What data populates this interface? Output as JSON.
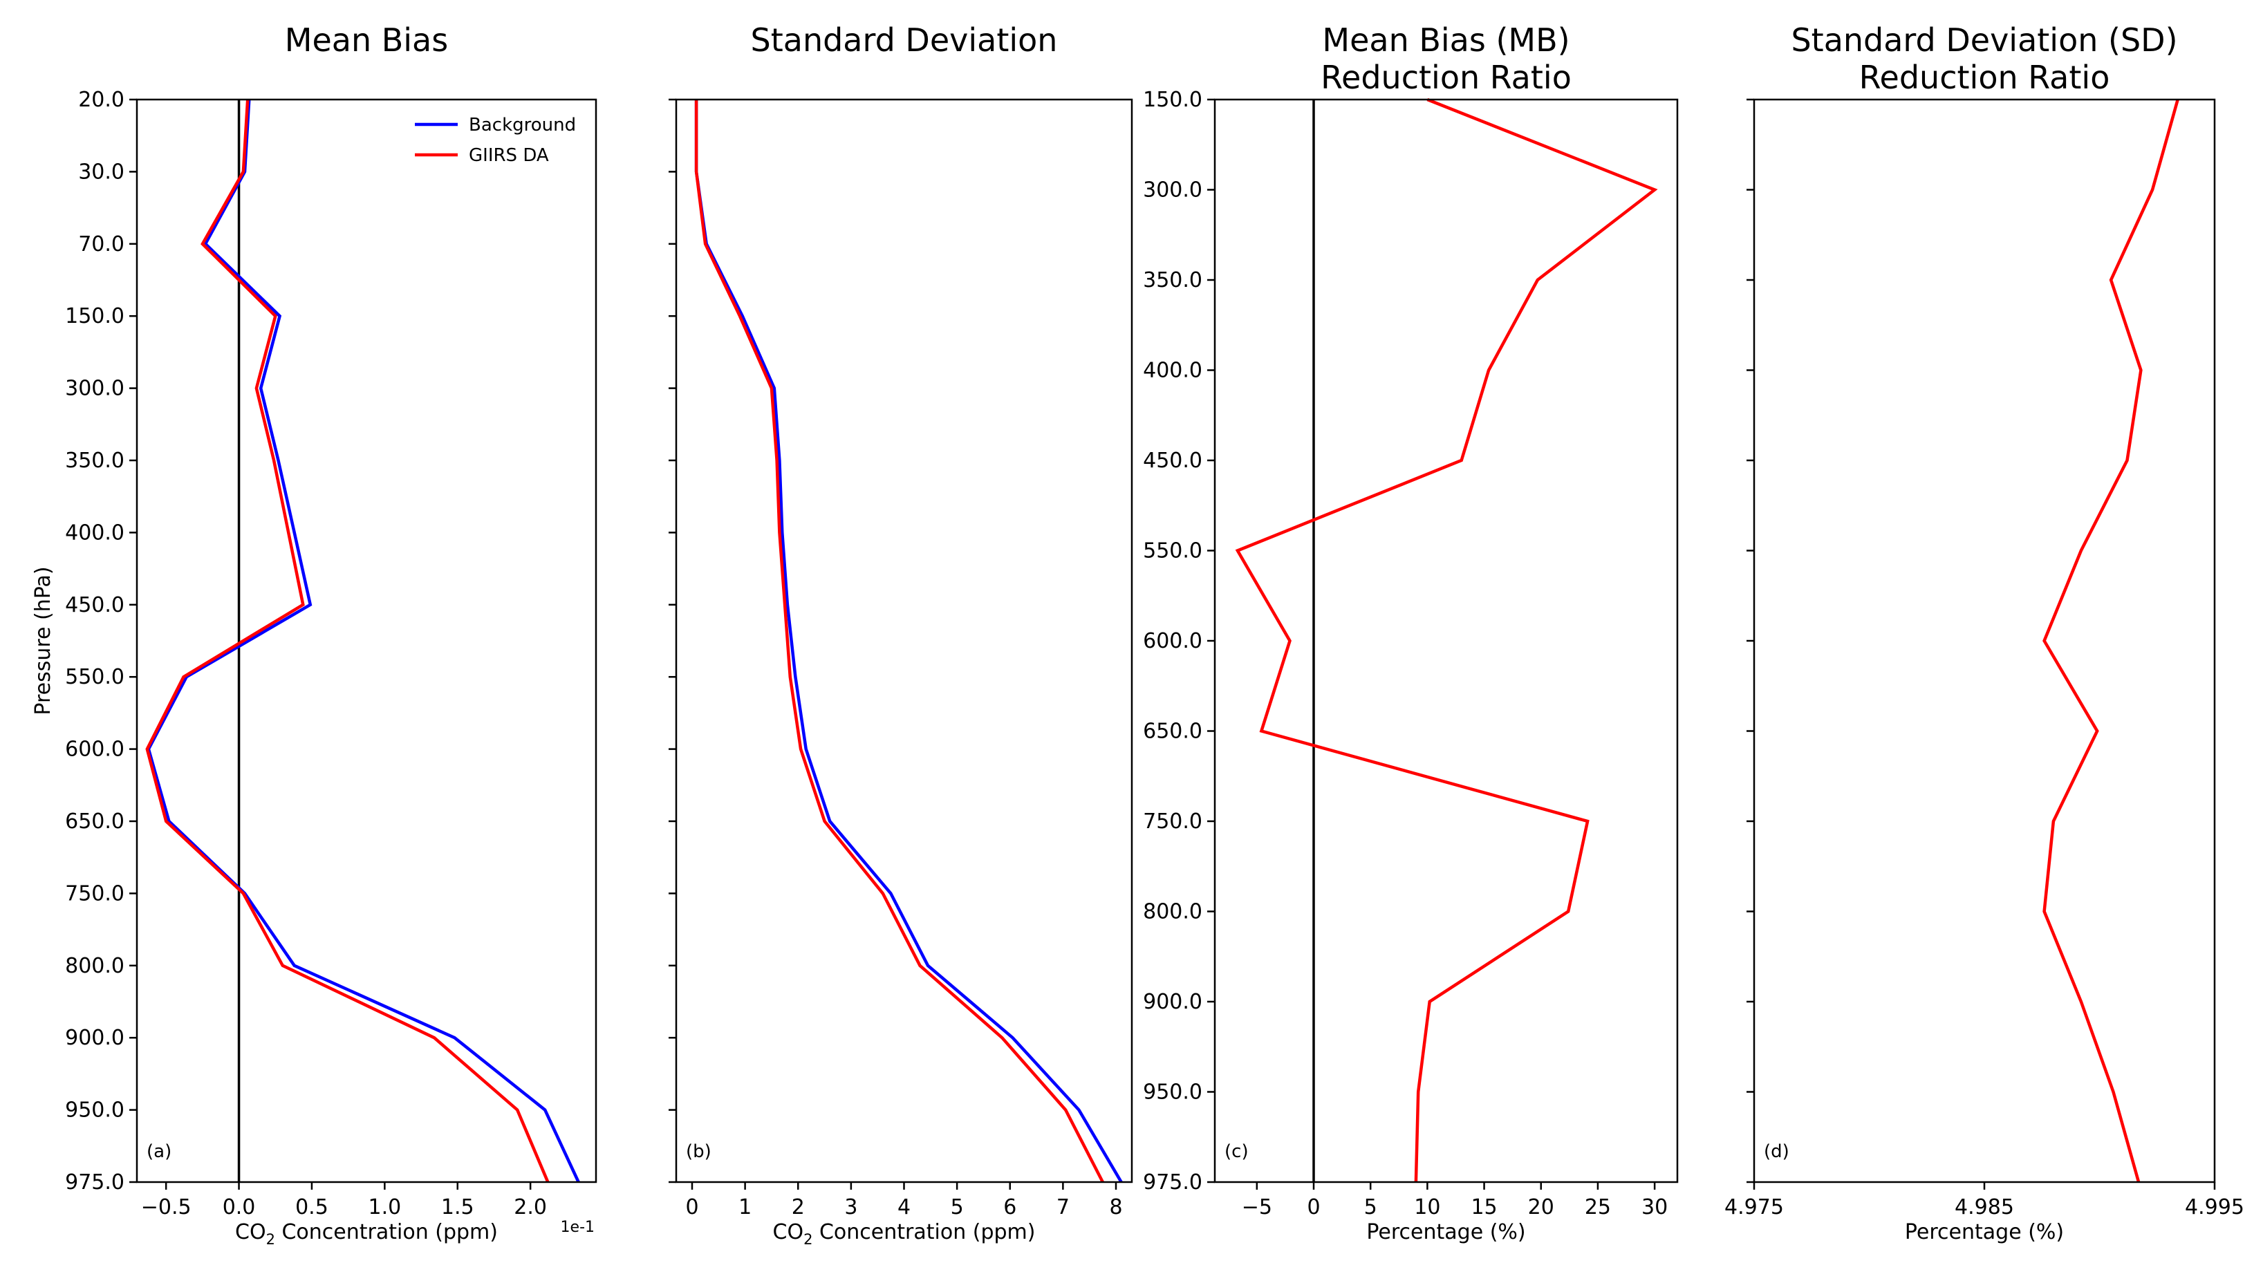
{
  "chart_data": [
    {
      "panel": "(a)",
      "type": "line",
      "title": "Mean Bias",
      "xlabel": "CO2 Concentration (ppm)",
      "xlabel_sub_main": "CO",
      "xlabel_sub": "2",
      "xlabel_rest": " Concentration (ppm)",
      "ylabel": "Pressure (hPa)",
      "x_offset_text": "1e-1",
      "xlim": [
        -0.7,
        2.45
      ],
      "xticks": [
        -0.5,
        0.0,
        0.5,
        1.0,
        1.5,
        2.0
      ],
      "xtick_labels": [
        "−0.5",
        "0.0",
        "0.5",
        "1.0",
        "1.5",
        "2.0"
      ],
      "levels": [
        "20.0",
        "30.0",
        "70.0",
        "150.0",
        "300.0",
        "350.0",
        "400.0",
        "450.0",
        "550.0",
        "600.0",
        "650.0",
        "750.0",
        "800.0",
        "900.0",
        "950.0",
        "975.0"
      ],
      "reference_line_x": 0,
      "legend": "top-right",
      "series": [
        {
          "name": "Background",
          "color": "#0000ff",
          "values": [
            0.07,
            0.04,
            -0.23,
            0.28,
            0.15,
            0.27,
            0.38,
            0.49,
            -0.36,
            -0.62,
            -0.48,
            0.04,
            0.38,
            1.48,
            2.1,
            2.33
          ]
        },
        {
          "name": "GIIRS DA",
          "color": "#ff0000",
          "values": [
            0.06,
            0.03,
            -0.25,
            0.25,
            0.12,
            0.24,
            0.34,
            0.44,
            -0.38,
            -0.63,
            -0.5,
            0.03,
            0.3,
            1.34,
            1.91,
            2.12
          ]
        }
      ]
    },
    {
      "panel": "(b)",
      "type": "line",
      "title": "Standard Deviation",
      "xlabel": "CO2 Concentration (ppm)",
      "xlabel_sub_main": "CO",
      "xlabel_sub": "2",
      "xlabel_rest": " Concentration (ppm)",
      "xlim": [
        -0.3,
        8.3
      ],
      "xticks": [
        0,
        1,
        2,
        3,
        4,
        5,
        6,
        7,
        8
      ],
      "xtick_labels": [
        "0",
        "1",
        "2",
        "3",
        "4",
        "5",
        "6",
        "7",
        "8"
      ],
      "levels": [
        "20.0",
        "30.0",
        "70.0",
        "150.0",
        "300.0",
        "350.0",
        "400.0",
        "450.0",
        "550.0",
        "600.0",
        "650.0",
        "750.0",
        "800.0",
        "900.0",
        "950.0",
        "975.0"
      ],
      "series": [
        {
          "name": "Background",
          "color": "#0000ff",
          "values": [
            0.08,
            0.08,
            0.27,
            0.95,
            1.55,
            1.65,
            1.7,
            1.8,
            1.95,
            2.15,
            2.6,
            3.75,
            4.45,
            6.05,
            7.3,
            8.1
          ]
        },
        {
          "name": "GIIRS DA",
          "color": "#ff0000",
          "values": [
            0.08,
            0.08,
            0.25,
            0.9,
            1.5,
            1.6,
            1.65,
            1.75,
            1.85,
            2.05,
            2.5,
            3.6,
            4.3,
            5.85,
            7.05,
            7.75
          ]
        }
      ]
    },
    {
      "panel": "(c)",
      "type": "line",
      "title": "Mean Bias (MB)",
      "title2": "Reduction Ratio",
      "xlabel": "Percentage (%)",
      "xlim": [
        -8.7,
        32.0
      ],
      "xticks": [
        -5,
        0,
        5,
        10,
        15,
        20,
        25,
        30
      ],
      "xtick_labels": [
        "−5",
        "0",
        "5",
        "10",
        "15",
        "20",
        "25",
        "30"
      ],
      "levels": [
        "150.0",
        "300.0",
        "350.0",
        "400.0",
        "450.0",
        "550.0",
        "600.0",
        "650.0",
        "750.0",
        "800.0",
        "900.0",
        "950.0",
        "975.0"
      ],
      "reference_line_x": 0,
      "series": [
        {
          "name": "MB Reduction Ratio",
          "color": "#ff0000",
          "values": [
            10.0,
            30.0,
            19.7,
            15.4,
            13.0,
            -6.7,
            -2.1,
            -4.6,
            24.1,
            22.4,
            10.2,
            9.2,
            9.0
          ]
        }
      ]
    },
    {
      "panel": "(d)",
      "type": "line",
      "title": "Standard Deviation (SD)",
      "title2": "Reduction Ratio",
      "xlabel": "Percentage (%)",
      "xlim": [
        4.975,
        4.995
      ],
      "xticks": [
        4.975,
        4.985,
        4.995
      ],
      "xtick_labels": [
        "4.975",
        "4.985",
        "4.995"
      ],
      "levels": [
        "150.0",
        "300.0",
        "350.0",
        "400.0",
        "450.0",
        "550.0",
        "600.0",
        "650.0",
        "750.0",
        "800.0",
        "900.0",
        "950.0",
        "975.0"
      ],
      "series": [
        {
          "name": "SD Reduction Ratio",
          "color": "#ff0000",
          "values": [
            4.9934,
            4.9923,
            4.9905,
            4.9918,
            4.9912,
            4.9892,
            4.9876,
            4.9899,
            4.988,
            4.9876,
            4.9892,
            4.9906,
            4.9917
          ]
        }
      ]
    }
  ]
}
